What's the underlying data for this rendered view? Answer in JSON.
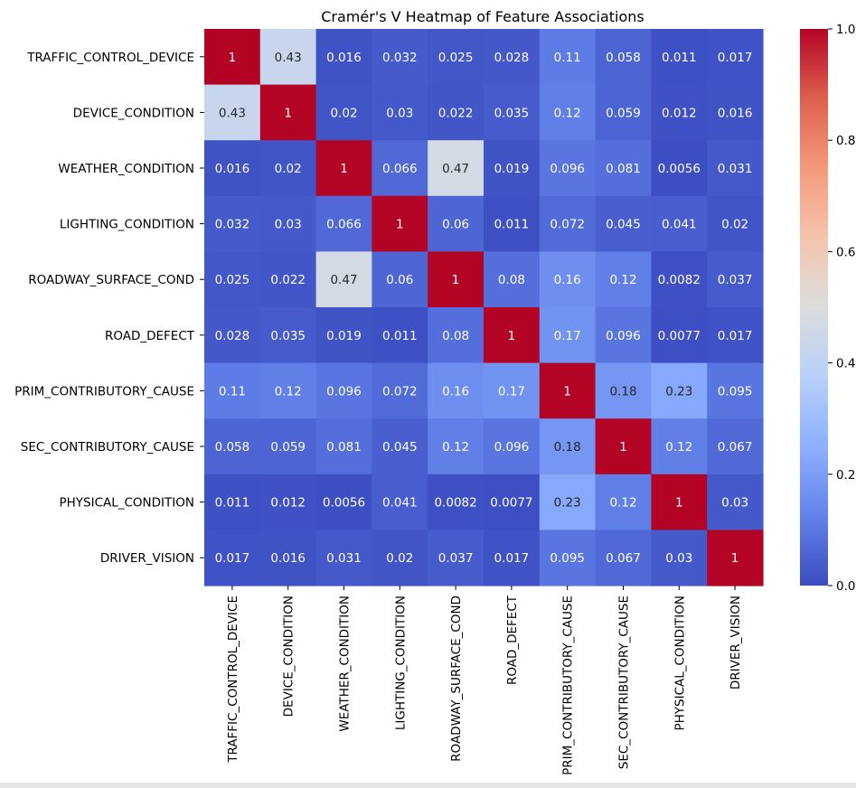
{
  "chart_data": {
    "type": "heatmap",
    "title": "Cramér's V Heatmap of Feature Associations",
    "labels": [
      "TRAFFIC_CONTROL_DEVICE",
      "DEVICE_CONDITION",
      "WEATHER_CONDITION",
      "LIGHTING_CONDITION",
      "ROADWAY_SURFACE_COND",
      "ROAD_DEFECT",
      "PRIM_CONTRIBUTORY_CAUSE",
      "SEC_CONTRIBUTORY_CAUSE",
      "PHYSICAL_CONDITION",
      "DRIVER_VISION"
    ],
    "values": [
      [
        1,
        0.43,
        0.016,
        0.032,
        0.025,
        0.028,
        0.11,
        0.058,
        0.011,
        0.017
      ],
      [
        0.43,
        1,
        0.02,
        0.03,
        0.022,
        0.035,
        0.12,
        0.059,
        0.012,
        0.016
      ],
      [
        0.016,
        0.02,
        1,
        0.066,
        0.47,
        0.019,
        0.096,
        0.081,
        0.0056,
        0.031
      ],
      [
        0.032,
        0.03,
        0.066,
        1,
        0.06,
        0.011,
        0.072,
        0.045,
        0.041,
        0.02
      ],
      [
        0.025,
        0.022,
        0.47,
        0.06,
        1,
        0.08,
        0.16,
        0.12,
        0.0082,
        0.037
      ],
      [
        0.028,
        0.035,
        0.019,
        0.011,
        0.08,
        1,
        0.17,
        0.096,
        0.0077,
        0.017
      ],
      [
        0.11,
        0.12,
        0.096,
        0.072,
        0.16,
        0.17,
        1,
        0.18,
        0.23,
        0.095
      ],
      [
        0.058,
        0.059,
        0.081,
        0.045,
        0.12,
        0.096,
        0.18,
        1,
        0.12,
        0.067
      ],
      [
        0.011,
        0.012,
        0.0056,
        0.041,
        0.0082,
        0.0077,
        0.23,
        0.12,
        1,
        0.03
      ],
      [
        0.017,
        0.016,
        0.031,
        0.02,
        0.037,
        0.017,
        0.095,
        0.067,
        0.03,
        1
      ]
    ],
    "colormap": "coolwarm",
    "colormap_stops": [
      "#3b4cc0",
      "#6282ea",
      "#8db0fe",
      "#b8d0f9",
      "#dcdddd",
      "#f5c4ac",
      "#f49a7b",
      "#de604d",
      "#b40426"
    ],
    "value_range": [
      0,
      1
    ],
    "colorbar": {
      "range": [
        0,
        1
      ],
      "ticks": [
        "0.0",
        "0.2",
        "0.4",
        "0.6",
        "0.8",
        "1.0"
      ]
    },
    "xlabel": "",
    "ylabel": ""
  }
}
